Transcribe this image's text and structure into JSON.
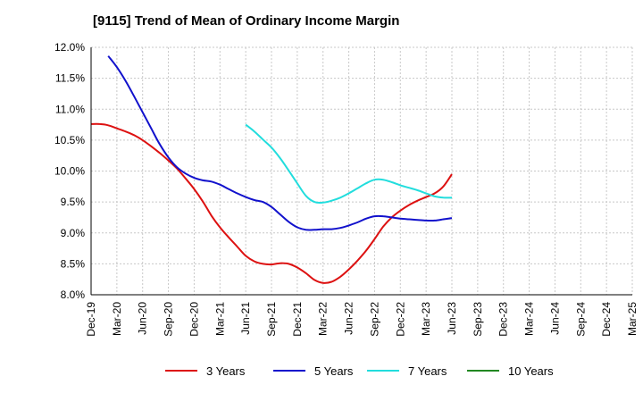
{
  "chart_data": {
    "type": "line",
    "title": "[9115]  Trend of Mean of Ordinary Income Margin",
    "xlabel": "",
    "ylabel": "",
    "x_labels": [
      "Dec-19",
      "Mar-20",
      "Jun-20",
      "Sep-20",
      "Dec-20",
      "Mar-21",
      "Jun-21",
      "Sep-21",
      "Dec-21",
      "Mar-22",
      "Jun-22",
      "Sep-22",
      "Dec-22",
      "Mar-23",
      "Jun-23",
      "Sep-23",
      "Dec-23",
      "Mar-24",
      "Jun-24",
      "Sep-24",
      "Dec-24",
      "Mar-25"
    ],
    "y_ticks": [
      "8.0%",
      "8.5%",
      "9.0%",
      "9.5%",
      "10.0%",
      "10.5%",
      "11.0%",
      "11.5%",
      "12.0%"
    ],
    "ylim": [
      8.0,
      12.0
    ],
    "grid": true,
    "legend_position": "bottom",
    "series": [
      {
        "name": "3 Years",
        "color": "#dd1111",
        "values": [
          10.76,
          10.76,
          10.74,
          10.69,
          10.64,
          10.58,
          10.5,
          10.4,
          10.29,
          10.17,
          10.04,
          9.88,
          9.71,
          9.51,
          9.28,
          9.09,
          8.93,
          8.78,
          8.63,
          8.54,
          8.5,
          8.49,
          8.51,
          8.5,
          8.44,
          8.35,
          8.24,
          8.19,
          8.21,
          8.29,
          8.41,
          8.55,
          8.71,
          8.9,
          9.1,
          9.25,
          9.36,
          9.45,
          9.52,
          9.58,
          9.64,
          9.75,
          9.95
        ]
      },
      {
        "name": "5 Years",
        "color": "#1111cc",
        "values": [
          null,
          null,
          11.86,
          11.68,
          11.46,
          11.21,
          10.95,
          10.69,
          10.43,
          10.22,
          10.06,
          9.96,
          9.89,
          9.85,
          9.83,
          9.78,
          9.71,
          9.64,
          9.58,
          9.53,
          9.5,
          9.42,
          9.3,
          9.18,
          9.09,
          9.05,
          9.05,
          9.06,
          9.06,
          9.08,
          9.12,
          9.17,
          9.23,
          9.27,
          9.27,
          9.25,
          9.23,
          9.22,
          9.21,
          9.2,
          9.2,
          9.22,
          9.24
        ]
      },
      {
        "name": "7 Years",
        "color": "#22dddd",
        "values": [
          null,
          null,
          null,
          null,
          null,
          null,
          null,
          null,
          null,
          null,
          null,
          null,
          null,
          null,
          null,
          null,
          null,
          null,
          10.75,
          10.64,
          10.51,
          10.38,
          10.21,
          10.01,
          9.8,
          9.6,
          9.5,
          9.49,
          9.52,
          9.57,
          9.64,
          9.72,
          9.8,
          9.86,
          9.86,
          9.82,
          9.77,
          9.73,
          9.69,
          9.64,
          9.59,
          9.57,
          9.57
        ]
      },
      {
        "name": "10 Years",
        "color": "#228822",
        "values": []
      }
    ]
  }
}
